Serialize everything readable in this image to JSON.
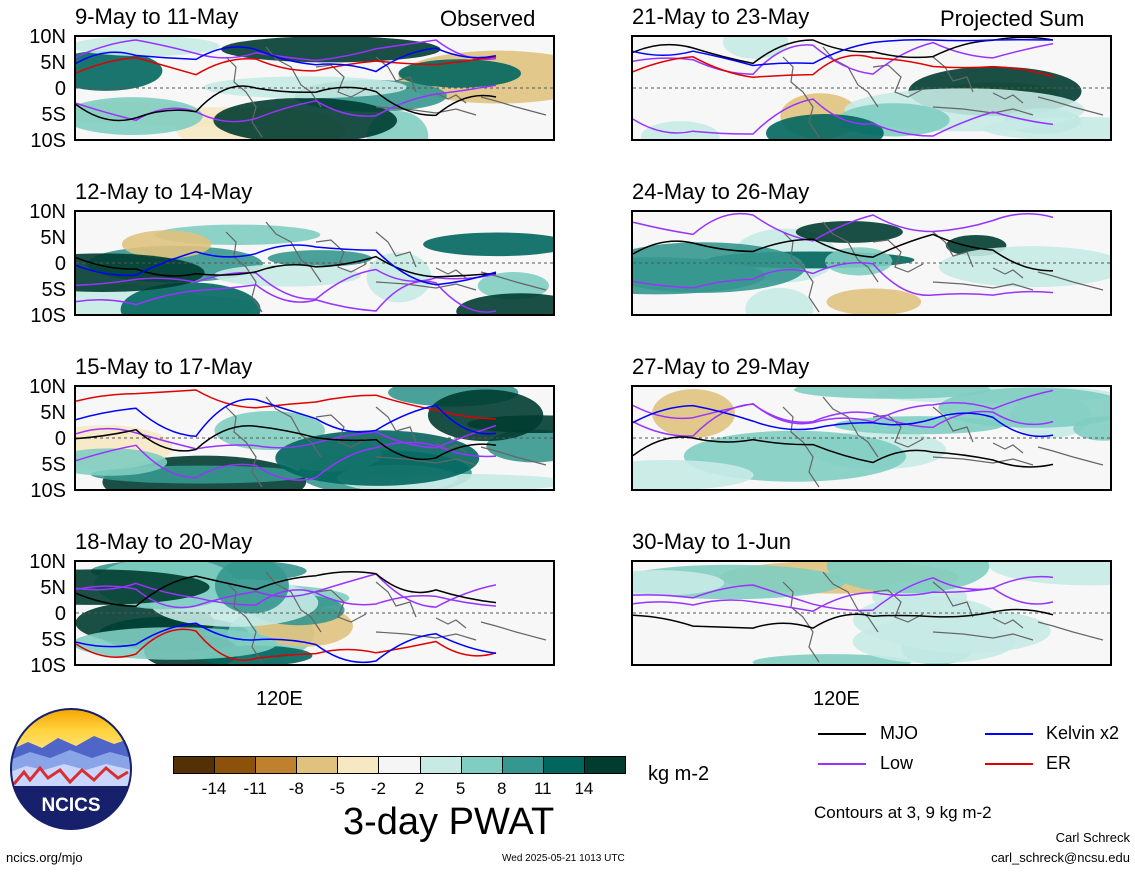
{
  "panels": [
    {
      "title": "9-May to 11-May",
      "tag": "Observed"
    },
    {
      "title": "12-May to 14-May",
      "tag": ""
    },
    {
      "title": "15-May to 17-May",
      "tag": ""
    },
    {
      "title": "18-May to 20-May",
      "tag": ""
    },
    {
      "title": "21-May to 23-May",
      "tag": "Projected Sum"
    },
    {
      "title": "24-May to 26-May",
      "tag": ""
    },
    {
      "title": "27-May to 29-May",
      "tag": ""
    },
    {
      "title": "30-May to 1-Jun",
      "tag": ""
    }
  ],
  "lat_labels": [
    "10N",
    "5N",
    "0",
    "5S",
    "10S"
  ],
  "lon_label": "120E",
  "colorbar": {
    "colors": [
      "#543005",
      "#8c510a",
      "#bf812d",
      "#dfc27d",
      "#f6e8c3",
      "#f5f5f5",
      "#c7eae5",
      "#80cdc1",
      "#35978f",
      "#01665e",
      "#003c30"
    ],
    "ticks": [
      "-14",
      "-11",
      "-8",
      "-5",
      "-2",
      "2",
      "5",
      "8",
      "11",
      "14"
    ],
    "unit": "kg m-2",
    "title": "3-day PWAT"
  },
  "legend": [
    {
      "label": "MJO",
      "color": "#000000"
    },
    {
      "label": "Kelvin x2",
      "color": "#0000ff"
    },
    {
      "label": "Low",
      "color": "#9933ff"
    },
    {
      "label": "ER",
      "color": "#e00000"
    }
  ],
  "contours_note": "Contours at 3, 9 kg m-2",
  "logo_text": "NCICS",
  "footer": {
    "left": "ncics.org/mjo",
    "center": "Wed 2025-05-21 1013 UTC",
    "author": "Carl Schreck",
    "email": "carl_schreck@ncsu.edu"
  }
}
